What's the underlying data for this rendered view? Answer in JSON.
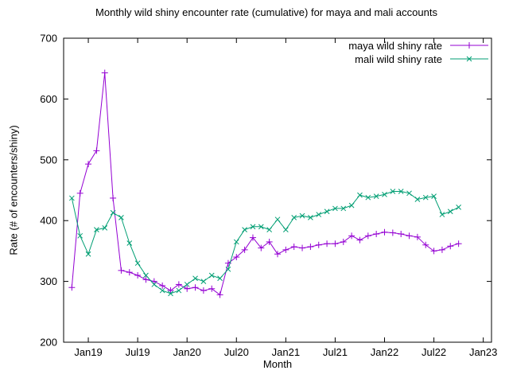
{
  "title": "Monthly wild shiny encounter rate (cumulative) for maya and mali accounts",
  "xlabel": "Month",
  "ylabel": "Rate (# of encounters/shiny)",
  "legend": [
    {
      "label": "maya wild shiny rate",
      "color": "#9400d3",
      "marker": "plus"
    },
    {
      "label": "mali wild shiny rate",
      "color": "#009e73",
      "marker": "cross"
    }
  ],
  "chart_data": {
    "type": "line",
    "title": "Monthly wild shiny encounter rate (cumulative) for maya and mali accounts",
    "xlabel": "Month",
    "ylabel": "Rate (# of encounters/shiny)",
    "ylim": [
      200,
      700
    ],
    "yticks": [
      200,
      300,
      400,
      500,
      600,
      700
    ],
    "xlim_month_offsets": [
      0,
      52
    ],
    "xticks": [
      {
        "label": "Jan19",
        "t": 3
      },
      {
        "label": "Jul19",
        "t": 9
      },
      {
        "label": "Jan20",
        "t": 15
      },
      {
        "label": "Jul20",
        "t": 21
      },
      {
        "label": "Jan21",
        "t": 27
      },
      {
        "label": "Jul21",
        "t": 33
      },
      {
        "label": "Jan22",
        "t": 39
      },
      {
        "label": "Jul22",
        "t": 45
      },
      {
        "label": "Jan23",
        "t": 51
      }
    ],
    "x_months": [
      "2018-11",
      "2018-12",
      "2019-01",
      "2019-02",
      "2019-03",
      "2019-04",
      "2019-05",
      "2019-06",
      "2019-07",
      "2019-08",
      "2019-09",
      "2019-10",
      "2019-11",
      "2019-12",
      "2020-01",
      "2020-02",
      "2020-03",
      "2020-04",
      "2020-05",
      "2020-06",
      "2020-07",
      "2020-08",
      "2020-09",
      "2020-10",
      "2020-11",
      "2020-12",
      "2021-01",
      "2021-02",
      "2021-03",
      "2021-04",
      "2021-05",
      "2021-06",
      "2021-07",
      "2021-08",
      "2021-09",
      "2021-10",
      "2021-11",
      "2021-12",
      "2022-01",
      "2022-02",
      "2022-03",
      "2022-04",
      "2022-05",
      "2022-06",
      "2022-07",
      "2022-08",
      "2022-09",
      "2022-10"
    ],
    "series": [
      {
        "name": "maya wild shiny rate",
        "color": "#9400d3",
        "marker": "plus",
        "values": [
          290,
          445,
          493,
          515,
          643,
          437,
          318,
          315,
          310,
          303,
          300,
          293,
          285,
          295,
          288,
          290,
          285,
          288,
          278,
          330,
          340,
          352,
          372,
          355,
          365,
          345,
          352,
          357,
          355,
          357,
          360,
          362,
          362,
          365,
          375,
          368,
          375,
          378,
          381,
          380,
          378,
          375,
          373,
          360,
          350,
          352,
          358,
          362
        ]
      },
      {
        "name": "mali wild shiny rate",
        "color": "#009e73",
        "marker": "cross",
        "values": [
          437,
          375,
          345,
          385,
          388,
          413,
          405,
          363,
          330,
          310,
          295,
          285,
          280,
          285,
          295,
          305,
          300,
          310,
          305,
          320,
          365,
          385,
          390,
          390,
          385,
          402,
          385,
          405,
          408,
          405,
          410,
          415,
          420,
          420,
          425,
          442,
          438,
          440,
          443,
          448,
          448,
          445,
          435,
          438,
          440,
          410,
          415,
          422
        ]
      }
    ]
  }
}
